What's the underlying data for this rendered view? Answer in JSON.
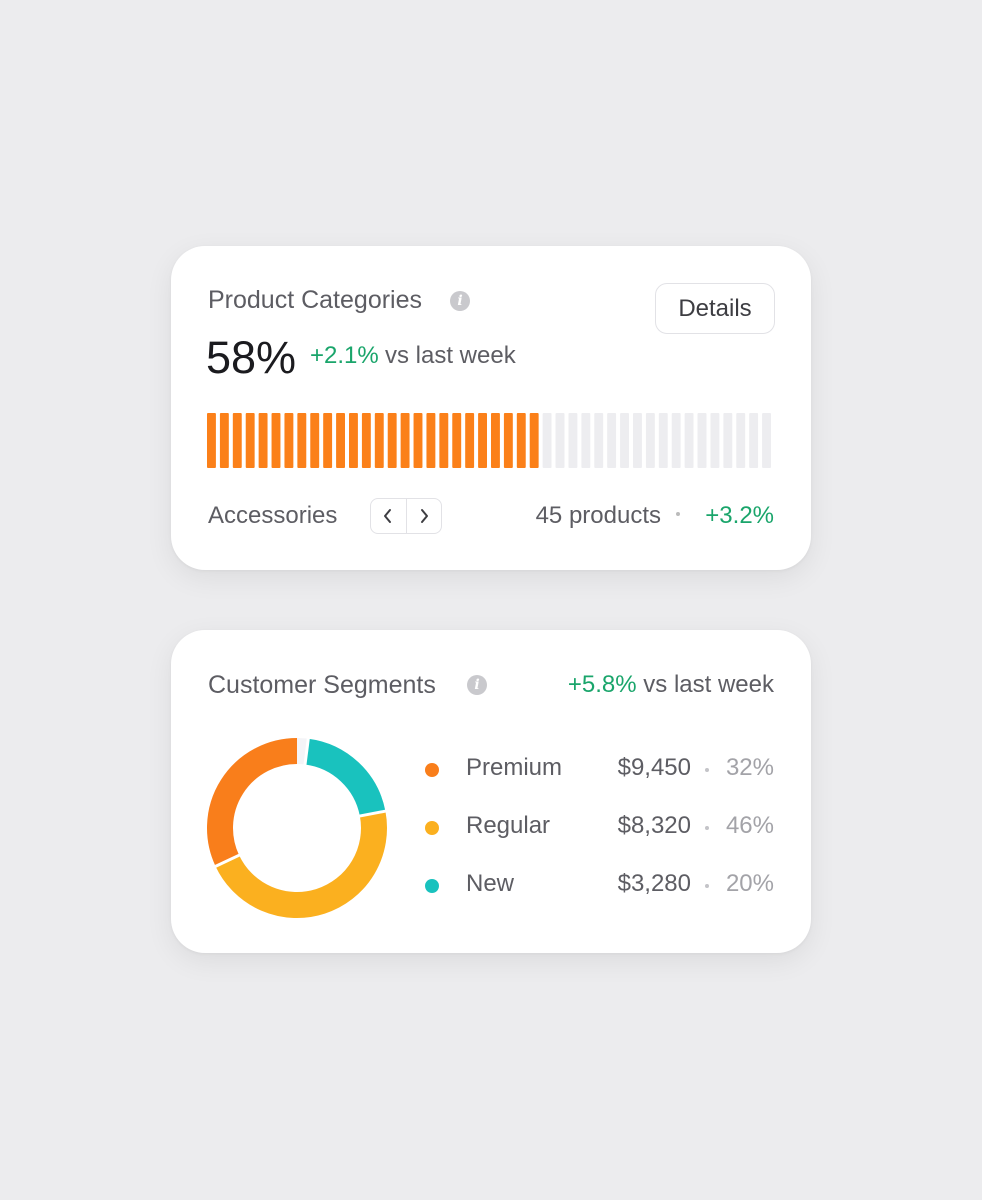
{
  "product_categories": {
    "title": "Product Categories",
    "button": "Details",
    "value": 58,
    "value_label": "58%",
    "change": "+2.1%",
    "comparison": "vs last week",
    "category": "Accessories",
    "products": "45 products",
    "category_change": "+3.2%"
  },
  "customer_segments": {
    "title": "Customer Segments",
    "change": "+5.8%",
    "comparison": "vs last week",
    "chart_data": {
      "type": "donut",
      "categories": [
        "Premium",
        "Regular",
        "New"
      ],
      "amounts": [
        "$9,450",
        "$8,320",
        "$3,280"
      ],
      "values": [
        32,
        46,
        20
      ],
      "value_labels": [
        "32%",
        "46%",
        "20%"
      ],
      "colors": [
        "#f97e1b",
        "#fbb01f",
        "#19c2be"
      ]
    }
  }
}
